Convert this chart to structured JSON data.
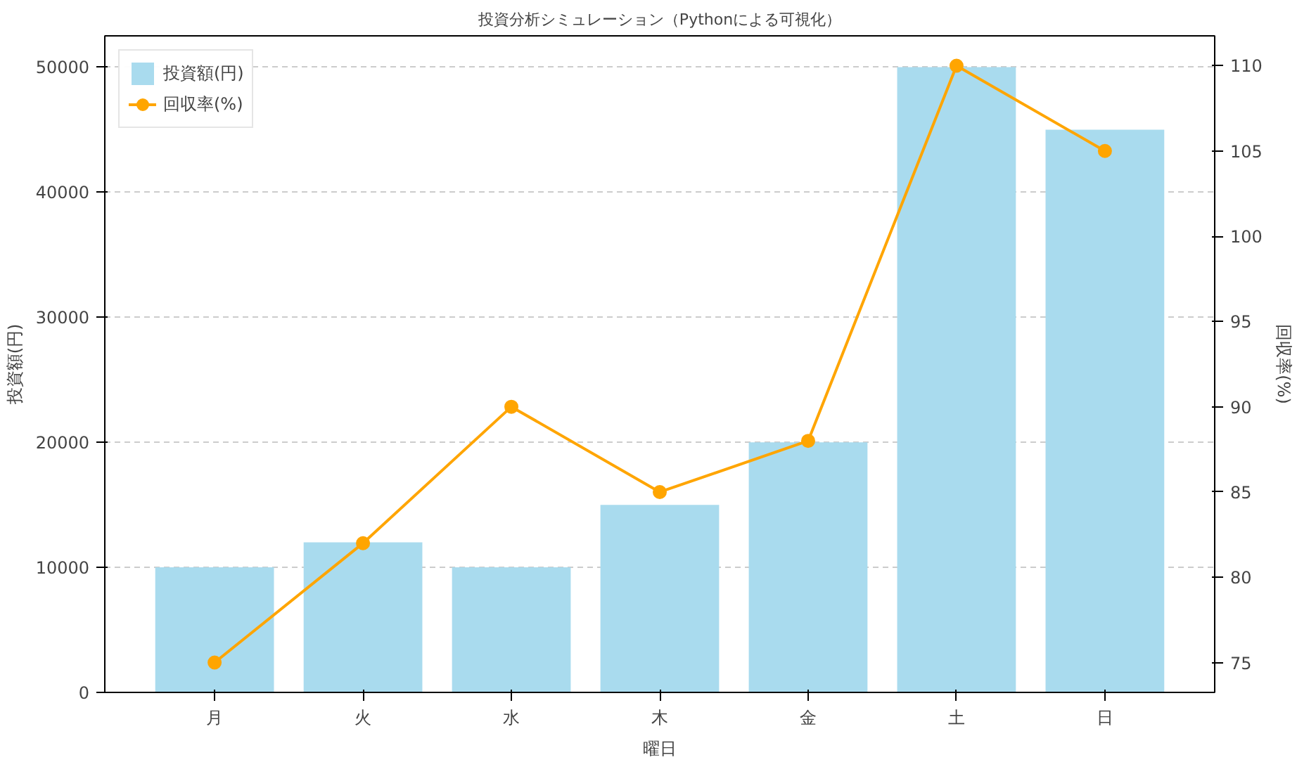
{
  "chart_data": {
    "type": "bar",
    "title": "投資分析シミュレーション（Pythonによる可視化）",
    "xlabel": "曜日",
    "ylabel": "投資額(円)",
    "y2label": "回収率(%)",
    "categories": [
      "月",
      "火",
      "水",
      "木",
      "金",
      "土",
      "日"
    ],
    "series": [
      {
        "name": "投資額(円)",
        "color": "#a9dbee",
        "values": [
          10000,
          12000,
          10000,
          15000,
          20000,
          50000,
          45000
        ]
      },
      {
        "name": "回収率(%)",
        "type": "line",
        "axis": "y2",
        "color": "#ffa500",
        "marker": "circle",
        "values": [
          75,
          82,
          90,
          85,
          88,
          110,
          105
        ]
      }
    ],
    "ylim": [
      0,
      52500
    ],
    "yticks": [
      0,
      10000,
      20000,
      30000,
      40000,
      50000
    ],
    "y2lim": [
      73.25,
      111.75
    ],
    "y2ticks": [
      75,
      80,
      85,
      90,
      95,
      100,
      105,
      110
    ],
    "grid": "y",
    "legend": "top left"
  }
}
